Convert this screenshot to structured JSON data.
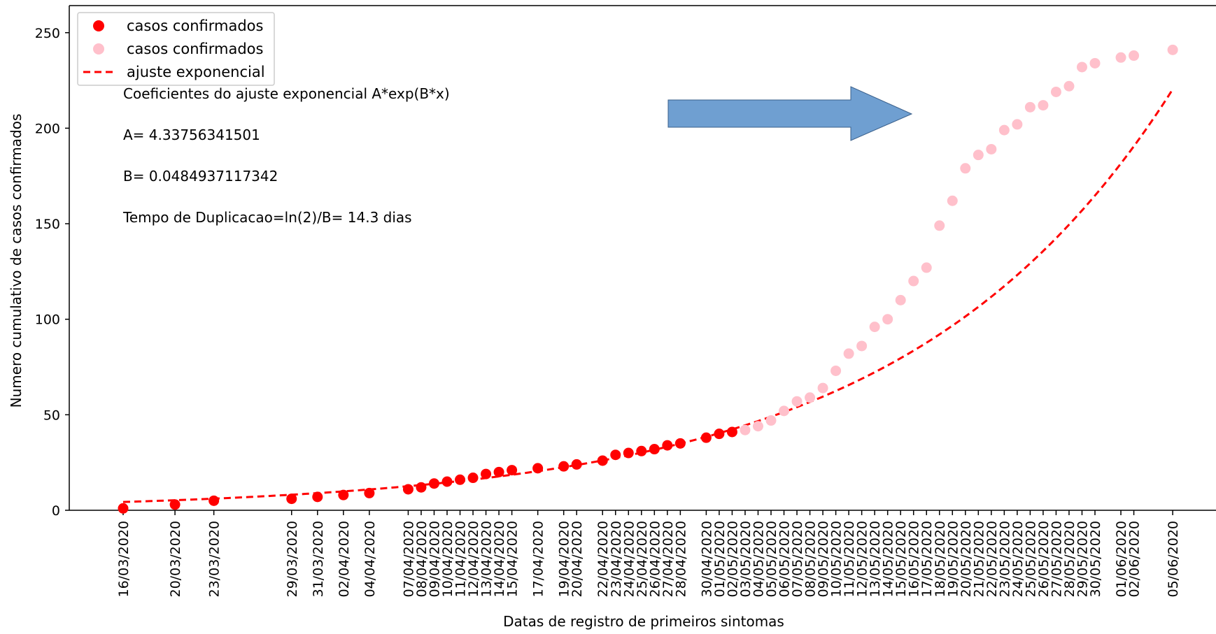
{
  "chart_data": {
    "type": "scatter",
    "xlabel": "Datas de registro de primeiros sintomas",
    "ylabel": "Numero cumulativo de casos confirmados",
    "ylim": [
      0,
      260
    ],
    "x_date_range": [
      "16/03/2020",
      "05/06/2020"
    ],
    "yticks": [
      0,
      50,
      100,
      150,
      200,
      250
    ],
    "grid": false,
    "legend_position": "top-left",
    "legend": [
      {
        "label": "casos confirmados",
        "marker": "circle",
        "color": "#ff0000"
      },
      {
        "label": "casos confirmados",
        "marker": "circle",
        "color": "#ffc0cb"
      },
      {
        "label": "ajuste exponencial",
        "marker": "dashed-line",
        "color": "#ff0000"
      }
    ],
    "annotations": [
      "Coeficientes do ajuste exponencial A*exp(B*x)",
      "A= 4.33756341501",
      "B= 0.0484937117342",
      "Tempo de Duplicacao=ln(2)/B=  14.3 dias"
    ],
    "fit": {
      "A": 4.33756341501,
      "B": 0.0484937117342,
      "x_start": "16/03/2020",
      "x_end": "05/06/2020",
      "color": "#ff0000"
    },
    "arrow_color": "#6f9fd1",
    "series": [
      {
        "color": "#ff0000",
        "points": [
          [
            "16/03/2020",
            1
          ],
          [
            "20/03/2020",
            3
          ],
          [
            "23/03/2020",
            5
          ],
          [
            "29/03/2020",
            6
          ],
          [
            "31/03/2020",
            7
          ],
          [
            "02/04/2020",
            8
          ],
          [
            "04/04/2020",
            9
          ],
          [
            "07/04/2020",
            11
          ],
          [
            "08/04/2020",
            12
          ],
          [
            "09/04/2020",
            14
          ],
          [
            "10/04/2020",
            15
          ],
          [
            "11/04/2020",
            16
          ],
          [
            "12/04/2020",
            17
          ],
          [
            "13/04/2020",
            19
          ],
          [
            "14/04/2020",
            20
          ],
          [
            "15/04/2020",
            21
          ],
          [
            "17/04/2020",
            22
          ],
          [
            "19/04/2020",
            23
          ],
          [
            "20/04/2020",
            24
          ],
          [
            "22/04/2020",
            26
          ],
          [
            "23/04/2020",
            29
          ],
          [
            "24/04/2020",
            30
          ],
          [
            "25/04/2020",
            31
          ],
          [
            "26/04/2020",
            32
          ],
          [
            "27/04/2020",
            34
          ],
          [
            "28/04/2020",
            35
          ],
          [
            "30/04/2020",
            38
          ],
          [
            "01/05/2020",
            40
          ],
          [
            "02/05/2020",
            41
          ]
        ]
      },
      {
        "color": "#ffc0cb",
        "points": [
          [
            "03/05/2020",
            42
          ],
          [
            "04/05/2020",
            44
          ],
          [
            "05/05/2020",
            47
          ],
          [
            "06/05/2020",
            52
          ],
          [
            "07/05/2020",
            57
          ],
          [
            "08/05/2020",
            59
          ],
          [
            "09/05/2020",
            64
          ],
          [
            "10/05/2020",
            73
          ],
          [
            "11/05/2020",
            82
          ],
          [
            "12/05/2020",
            86
          ],
          [
            "13/05/2020",
            96
          ],
          [
            "14/05/2020",
            100
          ],
          [
            "15/05/2020",
            110
          ],
          [
            "16/05/2020",
            120
          ],
          [
            "17/05/2020",
            127
          ],
          [
            "18/05/2020",
            149
          ],
          [
            "19/05/2020",
            162
          ],
          [
            "20/05/2020",
            179
          ],
          [
            "21/05/2020",
            186
          ],
          [
            "22/05/2020",
            189
          ],
          [
            "23/05/2020",
            199
          ],
          [
            "24/05/2020",
            202
          ],
          [
            "25/05/2020",
            211
          ],
          [
            "26/05/2020",
            212
          ],
          [
            "27/05/2020",
            219
          ],
          [
            "28/05/2020",
            222
          ],
          [
            "29/05/2020",
            232
          ],
          [
            "30/05/2020",
            234
          ],
          [
            "01/06/2020",
            237
          ],
          [
            "02/06/2020",
            238
          ],
          [
            "05/06/2020",
            241
          ]
        ]
      }
    ],
    "x_ticks": [
      "16/03/2020",
      "20/03/2020",
      "23/03/2020",
      "29/03/2020",
      "31/03/2020",
      "02/04/2020",
      "04/04/2020",
      "07/04/2020",
      "08/04/2020",
      "09/04/2020",
      "10/04/2020",
      "11/04/2020",
      "12/04/2020",
      "13/04/2020",
      "14/04/2020",
      "15/04/2020",
      "17/04/2020",
      "19/04/2020",
      "20/04/2020",
      "22/04/2020",
      "23/04/2020",
      "24/04/2020",
      "25/04/2020",
      "26/04/2020",
      "27/04/2020",
      "28/04/2020",
      "30/04/2020",
      "01/05/2020",
      "02/05/2020",
      "03/05/2020",
      "04/05/2020",
      "05/05/2020",
      "06/05/2020",
      "07/05/2020",
      "08/05/2020",
      "09/05/2020",
      "10/05/2020",
      "11/05/2020",
      "12/05/2020",
      "13/05/2020",
      "14/05/2020",
      "15/05/2020",
      "16/05/2020",
      "17/05/2020",
      "18/05/2020",
      "19/05/2020",
      "20/05/2020",
      "21/05/2020",
      "22/05/2020",
      "23/05/2020",
      "24/05/2020",
      "25/05/2020",
      "26/05/2020",
      "27/05/2020",
      "28/05/2020",
      "29/05/2020",
      "30/05/2020",
      "01/06/2020",
      "02/06/2020",
      "05/06/2020"
    ]
  }
}
